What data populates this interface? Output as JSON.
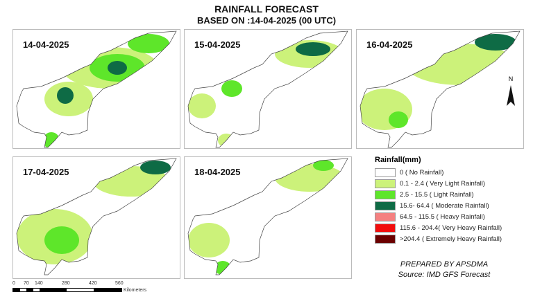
{
  "header": {
    "title": "RAINFALL FORECAST",
    "subtitle": "BASED ON :14-04-2025 (00 UTC)"
  },
  "panels": [
    {
      "date": "14-04-2025"
    },
    {
      "date": "15-04-2025"
    },
    {
      "date": "16-04-2025"
    },
    {
      "date": "17-04-2025"
    },
    {
      "date": "18-04-2025"
    }
  ],
  "compass": "N",
  "legend": {
    "title": "Rainfall(mm)",
    "items": [
      {
        "label": "0 ( No Rainfall)",
        "color": "#ffffff"
      },
      {
        "label": "0.1 - 2.4 ( Very Light Rainfall)",
        "color": "#ccf27a"
      },
      {
        "label": "2.5 - 15.5 ( Light Rainfall)",
        "color": "#5ee62a"
      },
      {
        "label": "15.6- 64.4 ( Moderate Rainfall)",
        "color": "#0e6b45"
      },
      {
        "label": "64.5 - 115.5 ( Heavy Rainfall)",
        "color": "#f58080"
      },
      {
        "label": "115.6 - 204.4( Very Heavy Rainfall)",
        "color": "#f20c0c"
      },
      {
        "label": ">204.4 ( Extremely Heavy Rainfall)",
        "color": "#6b0000"
      }
    ]
  },
  "credits": {
    "prepared": "PREPARED BY APSDMA",
    "source": "Source: IMD GFS Forecast"
  },
  "scale": {
    "ticks": [
      "0",
      "70",
      "140",
      "280",
      "420",
      "560"
    ],
    "unit": "Kilometers"
  }
}
